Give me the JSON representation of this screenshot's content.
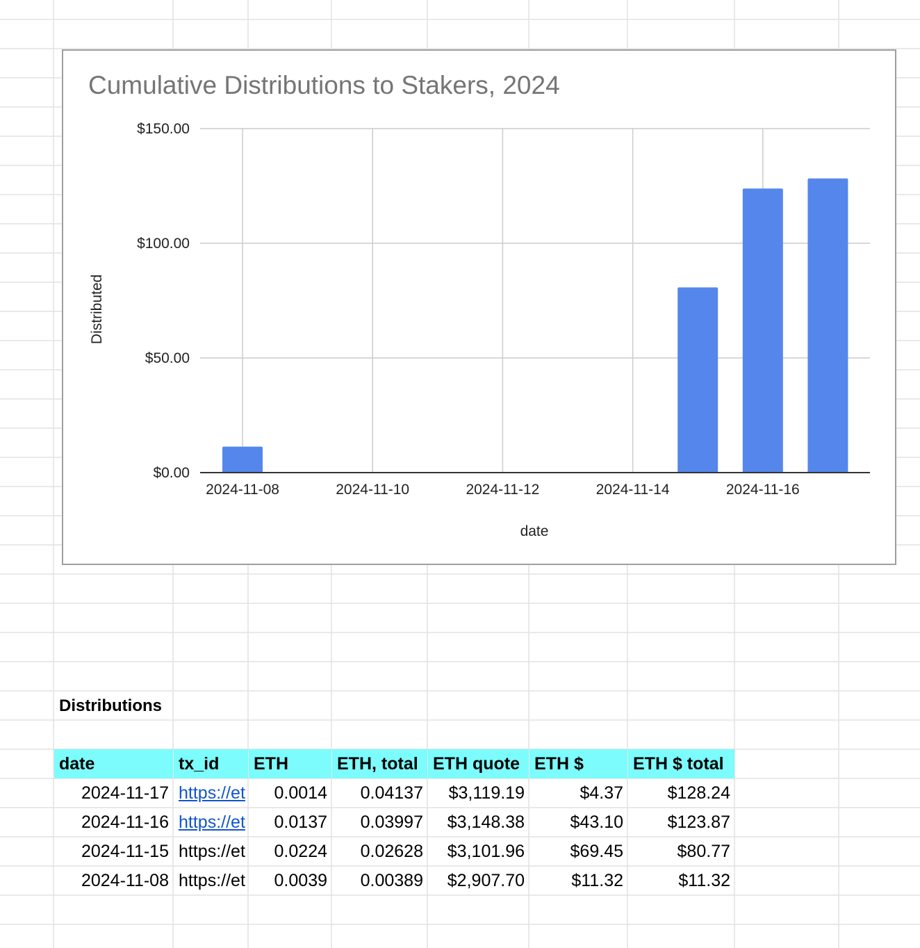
{
  "chart_data": {
    "type": "bar",
    "title": "Cumulative Distributions to Stakers, 2024",
    "xlabel": "date",
    "ylabel": "Distributed",
    "x": [
      "2024-11-08",
      "2024-11-15",
      "2024-11-16",
      "2024-11-17"
    ],
    "values": [
      11.32,
      80.77,
      123.87,
      128.24
    ],
    "xticks": [
      "2024-11-08",
      "2024-11-10",
      "2024-11-12",
      "2024-11-14",
      "2024-11-16"
    ],
    "yticks": [
      "$0.00",
      "$50.00",
      "$100.00",
      "$150.00"
    ],
    "ylim": [
      0,
      150
    ],
    "xlim": [
      "2024-11-08",
      "2024-11-17"
    ],
    "grid": true,
    "bar_color": "#5586ec"
  },
  "table": {
    "title": "Distributions",
    "header_color": "#7cfcfc",
    "link_color": "#1155cc",
    "columns": [
      "date",
      "tx_id",
      "ETH",
      "ETH, total",
      "ETH quote",
      "ETH $",
      "ETH $ total"
    ],
    "rows": [
      {
        "date": "2024-11-17",
        "tx_id": "https://et",
        "eth": "0.0014",
        "eth_total": "0.04137",
        "eth_quote": "$3,119.19",
        "eth_usd": "$4.37",
        "eth_usd_total": "$128.24",
        "link": true
      },
      {
        "date": "2024-11-16",
        "tx_id": "https://et",
        "eth": "0.0137",
        "eth_total": "0.03997",
        "eth_quote": "$3,148.38",
        "eth_usd": "$43.10",
        "eth_usd_total": "$123.87",
        "link": true
      },
      {
        "date": "2024-11-15",
        "tx_id": "https://et",
        "eth": "0.0224",
        "eth_total": "0.02628",
        "eth_quote": "$3,101.96",
        "eth_usd": "$69.45",
        "eth_usd_total": "$80.77",
        "link": false
      },
      {
        "date": "2024-11-08",
        "tx_id": "https://et",
        "eth": "0.0039",
        "eth_total": "0.00389",
        "eth_quote": "$2,907.70",
        "eth_usd": "$11.32",
        "eth_usd_total": "$11.32",
        "link": false
      }
    ]
  }
}
